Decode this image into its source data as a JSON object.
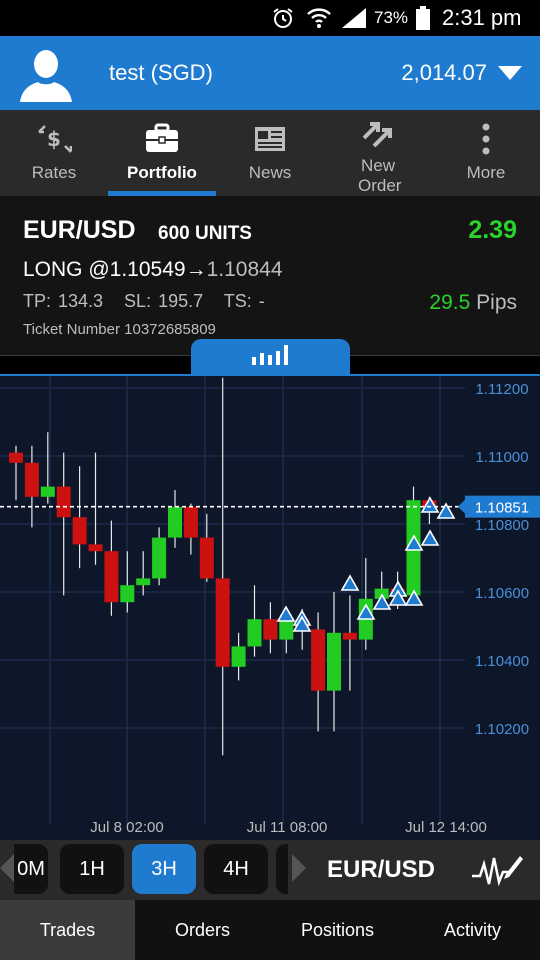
{
  "status_bar": {
    "battery_pct": "73%",
    "time": "2:31 pm"
  },
  "account": {
    "name": "test (SGD)",
    "balance": "2,014.07"
  },
  "nav": {
    "tabs": [
      {
        "label": "Rates",
        "icon": "rates-icon",
        "active": false
      },
      {
        "label": "Portfolio",
        "icon": "briefcase-icon",
        "active": true
      },
      {
        "label": "News",
        "icon": "newspaper-icon",
        "active": false
      },
      {
        "label": "New Order",
        "icon": "new-order-icon",
        "active": false
      },
      {
        "label": "More",
        "icon": "more-dots-icon",
        "active": false
      }
    ]
  },
  "trade": {
    "pair": "EUR/USD",
    "units": "600 UNITS",
    "profit": "2.39",
    "direction": "LONG @",
    "open_price": "1.10549",
    "current_price": "1.10844",
    "tp_sl_ts": "TP: 134.3   SL: 195.7   TS: -",
    "pips_value": "29.5",
    "pips_unit": "Pips",
    "ticket": "Ticket Number 10372685809"
  },
  "chart_data": {
    "type": "candlestick",
    "y_ticks": [
      "1.11200",
      "1.11000",
      "1.10800",
      "1.10600",
      "1.10400",
      "1.10200"
    ],
    "ylim": [
      1.1,
      1.1125
    ],
    "x_labels": [
      "Jul 8 02:00",
      "Jul 11 08:00",
      "Jul 12 14:00"
    ],
    "current_price_label": "1.10851",
    "current_price": 1.10851,
    "candles": [
      {
        "o": 1.1101,
        "h": 1.1103,
        "l": 1.1087,
        "c": 1.1098
      },
      {
        "o": 1.1098,
        "h": 1.1103,
        "l": 1.1079,
        "c": 1.1088
      },
      {
        "o": 1.1088,
        "h": 1.1107,
        "l": 1.1086,
        "c": 1.1091
      },
      {
        "o": 1.1091,
        "h": 1.1101,
        "l": 1.1059,
        "c": 1.1082
      },
      {
        "o": 1.1082,
        "h": 1.1097,
        "l": 1.1067,
        "c": 1.1074
      },
      {
        "o": 1.1074,
        "h": 1.1101,
        "l": 1.1068,
        "c": 1.1072
      },
      {
        "o": 1.1072,
        "h": 1.1081,
        "l": 1.1053,
        "c": 1.1057
      },
      {
        "o": 1.1057,
        "h": 1.1072,
        "l": 1.1054,
        "c": 1.1062
      },
      {
        "o": 1.1062,
        "h": 1.1072,
        "l": 1.1059,
        "c": 1.1064
      },
      {
        "o": 1.1064,
        "h": 1.1079,
        "l": 1.1062,
        "c": 1.1076
      },
      {
        "o": 1.1076,
        "h": 1.109,
        "l": 1.1073,
        "c": 1.1085
      },
      {
        "o": 1.1085,
        "h": 1.1086,
        "l": 1.1071,
        "c": 1.1076
      },
      {
        "o": 1.1076,
        "h": 1.1083,
        "l": 1.1063,
        "c": 1.1064
      },
      {
        "o": 1.1064,
        "h": 1.1123,
        "l": 1.1012,
        "c": 1.1038
      },
      {
        "o": 1.1038,
        "h": 1.1048,
        "l": 1.1034,
        "c": 1.1044
      },
      {
        "o": 1.1044,
        "h": 1.1062,
        "l": 1.1041,
        "c": 1.1052
      },
      {
        "o": 1.1052,
        "h": 1.1057,
        "l": 1.1042,
        "c": 1.1046
      },
      {
        "o": 1.1046,
        "h": 1.1055,
        "l": 1.1042,
        "c": 1.1052
      },
      {
        "o": 1.1052,
        "h": 1.1055,
        "l": 1.1043,
        "c": 1.1049
      },
      {
        "o": 1.1049,
        "h": 1.1054,
        "l": 1.1019,
        "c": 1.1031
      },
      {
        "o": 1.1031,
        "h": 1.106,
        "l": 1.1019,
        "c": 1.1048
      },
      {
        "o": 1.1048,
        "h": 1.1059,
        "l": 1.1031,
        "c": 1.1046
      },
      {
        "o": 1.1046,
        "h": 1.107,
        "l": 1.1043,
        "c": 1.1058
      },
      {
        "o": 1.1058,
        "h": 1.1066,
        "l": 1.1055,
        "c": 1.1061
      },
      {
        "o": 1.1061,
        "h": 1.1066,
        "l": 1.1055,
        "c": 1.1059
      },
      {
        "o": 1.1059,
        "h": 1.1091,
        "l": 1.1056,
        "c": 1.1087
      },
      {
        "o": 1.1087,
        "h": 1.1088,
        "l": 1.108,
        "c": 1.1085
      }
    ],
    "markers": [
      [
        350,
        585
      ],
      [
        366,
        614
      ],
      [
        382,
        604
      ],
      [
        398,
        591
      ],
      [
        398,
        600
      ],
      [
        414,
        545
      ],
      [
        414,
        600
      ],
      [
        430,
        540
      ],
      [
        430,
        507
      ],
      [
        446,
        513
      ],
      [
        286,
        616
      ],
      [
        302,
        620
      ],
      [
        302,
        626
      ]
    ]
  },
  "timeframes": {
    "buttons": [
      {
        "label": "0M",
        "active": false
      },
      {
        "label": "1H",
        "active": false
      },
      {
        "label": "3H",
        "active": true
      },
      {
        "label": "4H",
        "active": false
      }
    ],
    "pair": "EUR/USD"
  },
  "bottom_tabs": [
    {
      "label": "Trades",
      "active": true
    },
    {
      "label": "Orders",
      "active": false
    },
    {
      "label": "Positions",
      "active": false
    },
    {
      "label": "Activity",
      "active": false
    }
  ],
  "colors": {
    "accent": "#1e7bd0",
    "bull": "#22cc22",
    "bear": "#cc1111",
    "profit": "#2ad32a"
  }
}
